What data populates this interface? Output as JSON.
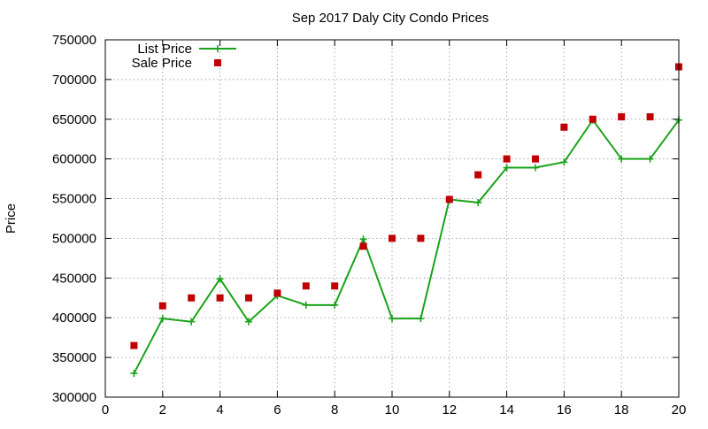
{
  "chart_data": {
    "type": "line",
    "title": "Sep 2017 Daly City Condo Prices",
    "xlabel": "",
    "ylabel": "Price",
    "xlim": [
      0,
      20
    ],
    "ylim": [
      300000,
      750000
    ],
    "x_ticks": [
      0,
      2,
      4,
      6,
      8,
      10,
      12,
      14,
      16,
      18,
      20
    ],
    "y_ticks": [
      300000,
      350000,
      400000,
      450000,
      500000,
      550000,
      600000,
      650000,
      700000,
      750000
    ],
    "grid": true,
    "legend_position": "top-left",
    "series": [
      {
        "name": "List Price",
        "style": "line-with-plus-markers",
        "color": "#1aa31a",
        "x": [
          1,
          2,
          3,
          4,
          5,
          6,
          7,
          8,
          9,
          10,
          11,
          12,
          13,
          14,
          15,
          16,
          17,
          18,
          19,
          20
        ],
        "values": [
          330000,
          399000,
          395000,
          449000,
          395000,
          428000,
          416000,
          416000,
          499000,
          399000,
          399000,
          549000,
          545000,
          589000,
          589000,
          596000,
          649000,
          600000,
          600000,
          649000
        ]
      },
      {
        "name": "Sale Price",
        "style": "square-markers",
        "color": "#c00000",
        "x": [
          1,
          2,
          3,
          4,
          5,
          6,
          7,
          8,
          9,
          10,
          11,
          12,
          13,
          14,
          15,
          16,
          17,
          18,
          19,
          20
        ],
        "values": [
          365000,
          415000,
          425000,
          425000,
          425000,
          431000,
          440000,
          440000,
          490000,
          500000,
          500000,
          549000,
          580000,
          600000,
          600000,
          640000,
          650000,
          653000,
          653000,
          716000
        ]
      }
    ]
  }
}
